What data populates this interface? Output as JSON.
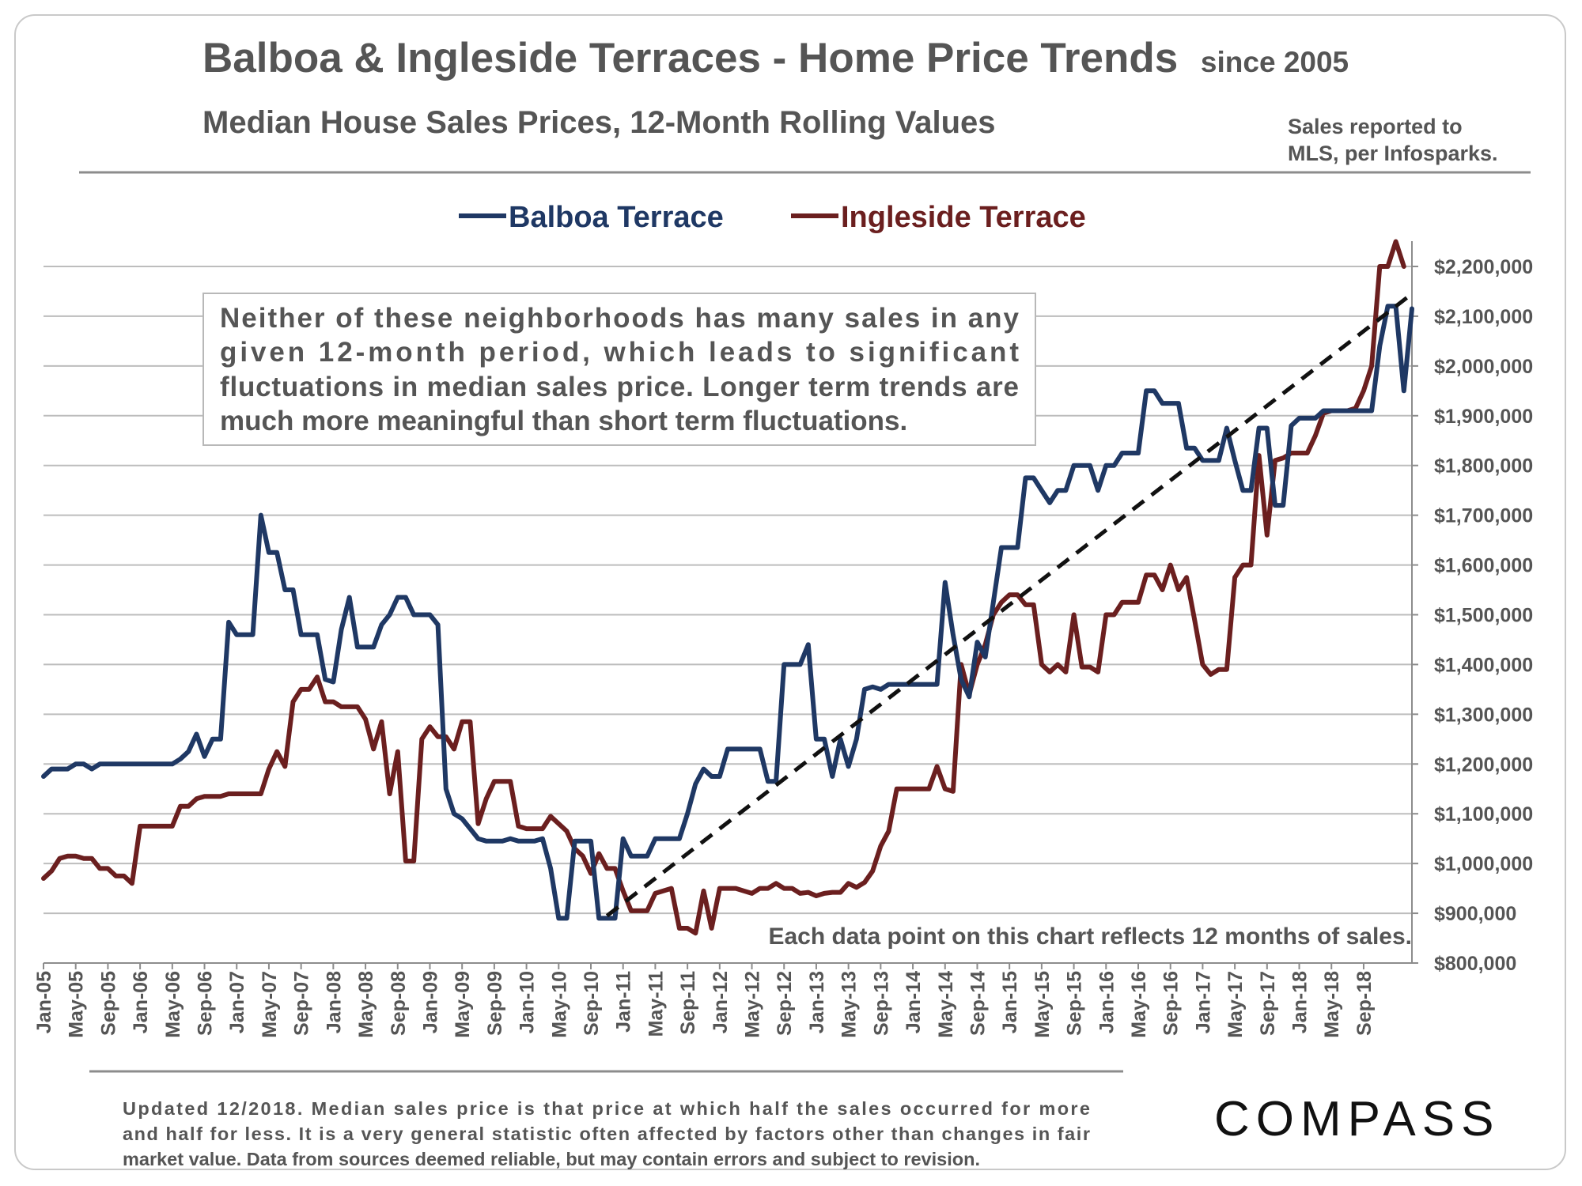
{
  "header": {
    "title": "Balboa & Ingleside Terraces - Home Price Trends",
    "title_suffix": "since 2005",
    "subtitle": "Median House Sales Prices, 12-Month Rolling Values",
    "source_note_line1": "Sales reported to",
    "source_note_line2": "MLS, per Infosparks."
  },
  "info_box": {
    "lines": [
      "Neither of these neighborhoods has many sales in any",
      "given 12-month period, which leads to significant",
      "fluctuations in median sales price. Longer term trends are",
      "much more meaningful than short term fluctuations."
    ]
  },
  "bottom_annotation": "Each data point on this chart reflects 12 months of sales.",
  "footer": {
    "lines": [
      "Updated 12/2018. Median sales price is that price at which half the sales occurred for more",
      "and half for less. It is a very general statistic often affected by factors other than changes in fair",
      "market value. Data from sources deemed reliable, but may contain errors and subject to revision."
    ]
  },
  "logo": "COMPASS",
  "colors": {
    "balboa": "#1f3864",
    "ingleside": "#6b1f1f",
    "trend": "#111111",
    "grid": "#bdbdbd",
    "text": "#555555"
  },
  "chart_data": {
    "type": "line",
    "ylim": [
      800000,
      2250000
    ],
    "yticks": [
      800000,
      900000,
      1000000,
      1100000,
      1200000,
      1300000,
      1400000,
      1500000,
      1600000,
      1700000,
      1800000,
      1900000,
      2000000,
      2100000,
      2200000
    ],
    "ytick_labels": [
      "$800,000",
      "$900,000",
      "$1,000,000",
      "$1,100,000",
      "$1,200,000",
      "$1,300,000",
      "$1,400,000",
      "$1,500,000",
      "$1,600,000",
      "$1,700,000",
      "$1,800,000",
      "$1,900,000",
      "$2,000,000",
      "$2,100,000",
      "$2,200,000"
    ],
    "x_start": "Jan-05",
    "x_end": "Dec-18",
    "xtick_labels": [
      "Jan-05",
      "May-05",
      "Sep-05",
      "Jan-06",
      "May-06",
      "Sep-06",
      "Jan-07",
      "May-07",
      "Sep-07",
      "Jan-08",
      "May-08",
      "Sep-08",
      "Jan-09",
      "May-09",
      "Sep-09",
      "Jan-10",
      "May-10",
      "Sep-10",
      "Jan-11",
      "May-11",
      "Sep-11",
      "Jan-12",
      "May-12",
      "Sep-12",
      "Jan-13",
      "May-13",
      "Sep-13",
      "Jan-14",
      "May-14",
      "Sep-14",
      "Jan-15",
      "May-15",
      "Sep-15",
      "Jan-16",
      "May-16",
      "Sep-16",
      "Jan-17",
      "May-17",
      "Sep-17",
      "Jan-18",
      "May-18",
      "Sep-18"
    ],
    "grid": "horizontal",
    "legend_position": "top-center",
    "series": [
      {
        "name": "Balboa Terrace",
        "values": [
          1175000,
          1190000,
          1190000,
          1190000,
          1200000,
          1200000,
          1190000,
          1200000,
          1200000,
          1200000,
          1200000,
          1200000,
          1200000,
          1200000,
          1200000,
          1200000,
          1200000,
          1210000,
          1225000,
          1260000,
          1215000,
          1250000,
          1250000,
          1485000,
          1460000,
          1460000,
          1460000,
          1700000,
          1625000,
          1625000,
          1550000,
          1550000,
          1460000,
          1460000,
          1460000,
          1370000,
          1365000,
          1470000,
          1535000,
          1435000,
          1435000,
          1435000,
          1480000,
          1500000,
          1535000,
          1535000,
          1500000,
          1500000,
          1500000,
          1480000,
          1150000,
          1100000,
          1090000,
          1070000,
          1050000,
          1045000,
          1045000,
          1045000,
          1050000,
          1045000,
          1045000,
          1045000,
          1050000,
          990000,
          890000,
          890000,
          1045000,
          1045000,
          1045000,
          890000,
          890000,
          890000,
          1050000,
          1015000,
          1015000,
          1015000,
          1050000,
          1050000,
          1050000,
          1050000,
          1100000,
          1160000,
          1190000,
          1175000,
          1175000,
          1230000,
          1230000,
          1230000,
          1230000,
          1230000,
          1165000,
          1165000,
          1400000,
          1400000,
          1400000,
          1440000,
          1250000,
          1250000,
          1175000,
          1250000,
          1195000,
          1250000,
          1350000,
          1355000,
          1350000,
          1360000,
          1360000,
          1360000,
          1360000,
          1360000,
          1360000,
          1360000,
          1565000,
          1460000,
          1370000,
          1335000,
          1445000,
          1415000,
          1525000,
          1635000,
          1635000,
          1635000,
          1775000,
          1775000,
          1750000,
          1725000,
          1750000,
          1750000,
          1800000,
          1800000,
          1800000,
          1750000,
          1800000,
          1800000,
          1825000,
          1825000,
          1825000,
          1950000,
          1950000,
          1925000,
          1925000,
          1925000,
          1835000,
          1835000,
          1810000,
          1810000,
          1810000,
          1875000,
          1810000,
          1750000,
          1750000,
          1875000,
          1875000,
          1720000,
          1720000,
          1880000,
          1895000,
          1895000,
          1895000,
          1910000,
          1910000,
          1910000,
          1910000,
          1910000,
          1910000,
          1910000,
          2040000,
          2120000,
          2120000,
          1950000,
          2115000
        ]
      },
      {
        "name": "Ingleside Terrace",
        "values": [
          970000,
          985000,
          1010000,
          1015000,
          1015000,
          1010000,
          1010000,
          990000,
          990000,
          975000,
          975000,
          960000,
          1075000,
          1075000,
          1075000,
          1075000,
          1075000,
          1115000,
          1115000,
          1130000,
          1135000,
          1135000,
          1135000,
          1140000,
          1140000,
          1140000,
          1140000,
          1140000,
          1190000,
          1225000,
          1195000,
          1325000,
          1350000,
          1350000,
          1375000,
          1325000,
          1325000,
          1315000,
          1315000,
          1315000,
          1290000,
          1230000,
          1285000,
          1140000,
          1225000,
          1005000,
          1005000,
          1250000,
          1275000,
          1255000,
          1255000,
          1230000,
          1285000,
          1285000,
          1080000,
          1130000,
          1165000,
          1165000,
          1165000,
          1075000,
          1070000,
          1070000,
          1070000,
          1095000,
          1080000,
          1065000,
          1030000,
          1015000,
          980000,
          1020000,
          990000,
          990000,
          945000,
          905000,
          905000,
          905000,
          940000,
          945000,
          950000,
          870000,
          870000,
          860000,
          945000,
          870000,
          950000,
          950000,
          950000,
          945000,
          940000,
          950000,
          950000,
          960000,
          950000,
          950000,
          940000,
          942000,
          935000,
          940000,
          942000,
          942000,
          960000,
          952000,
          962000,
          985000,
          1035000,
          1065000,
          1150000,
          1150000,
          1150000,
          1150000,
          1150000,
          1195000,
          1150000,
          1145000,
          1400000,
          1340000,
          1400000,
          1440000,
          1500000,
          1525000,
          1540000,
          1540000,
          1520000,
          1520000,
          1400000,
          1385000,
          1400000,
          1385000,
          1500000,
          1395000,
          1395000,
          1385000,
          1500000,
          1500000,
          1525000,
          1525000,
          1525000,
          1580000,
          1580000,
          1550000,
          1600000,
          1550000,
          1575000,
          1490000,
          1400000,
          1380000,
          1390000,
          1390000,
          1575000,
          1600000,
          1600000,
          1820000,
          1660000,
          1810000,
          1815000,
          1825000,
          1825000,
          1825000,
          1860000,
          1905000,
          1910000,
          1910000,
          1910000,
          1915000,
          1950000,
          2000000,
          2200000,
          2200000,
          2250000,
          2200000
        ]
      }
    ],
    "trendline": {
      "style": "dashed",
      "start": {
        "x": "Nov-10",
        "y": 895000
      },
      "end": {
        "x": "Dec-18",
        "y": 2145000
      }
    }
  }
}
